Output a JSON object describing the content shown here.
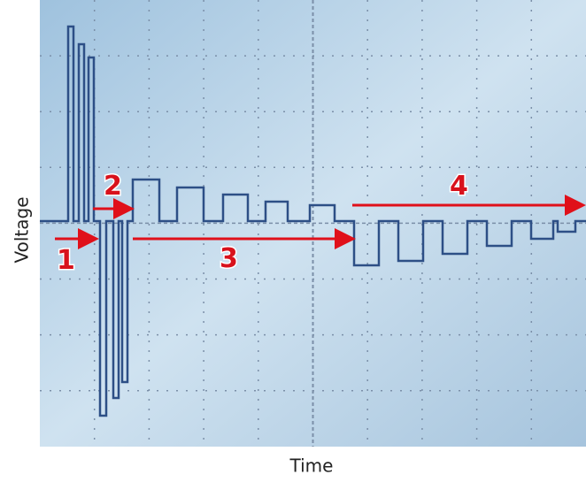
{
  "axes": {
    "y_label": "Voltage",
    "x_label": "Time"
  },
  "annotations": [
    "1",
    "2",
    "3",
    "4"
  ]
}
